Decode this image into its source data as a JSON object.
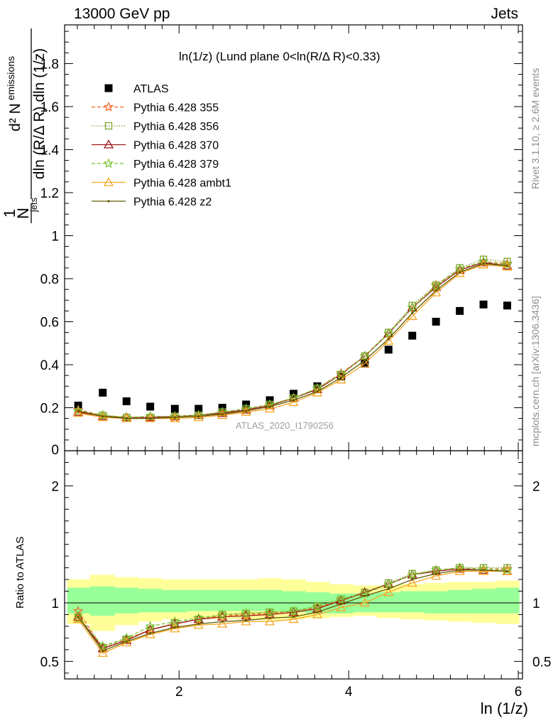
{
  "header": {
    "energy_label": "13000 GeV pp",
    "process_label": "Jets"
  },
  "side_labels": {
    "rivet": "Rivet 3.1.10, ≥ 2.6M events",
    "mcplots": "mcplots.cern.ch [arXiv:1306.3436]"
  },
  "analysis_id": "ATLAS_2020_I1790256",
  "chart_data": [
    {
      "type": "scatter",
      "title": "ln(1/z) (Lund plane 0<ln(R/Δ R)<0.33)",
      "ylabel": "1/N_jets d²N_emissions / dln(R/ΔR) dln(1/z)",
      "xlabel": "ln (1/z)",
      "xlim": [
        0.65,
        6.05
      ],
      "ylim": [
        0,
        1.98
      ],
      "y_ticks": [
        0,
        0.2,
        0.4,
        0.6,
        0.8,
        1,
        1.2,
        1.4,
        1.6,
        1.8
      ],
      "y_tick_labels": [
        "0",
        "0.2",
        "0.4",
        "0.6",
        "0.8",
        "1",
        "1.2",
        "1.4",
        "1.6",
        "1.8"
      ],
      "legend_placement": "top-left",
      "x": [
        0.81,
        1.1,
        1.38,
        1.66,
        1.95,
        2.23,
        2.51,
        2.79,
        3.07,
        3.35,
        3.63,
        3.91,
        4.19,
        4.47,
        4.75,
        5.03,
        5.31,
        5.59,
        5.87
      ],
      "series": [
        {
          "name": "ATLAS",
          "color": "#000000",
          "marker": "square",
          "line": "none",
          "values": [
            0.21,
            0.27,
            0.23,
            0.205,
            0.195,
            0.195,
            0.2,
            0.215,
            0.235,
            0.265,
            0.3,
            0.345,
            0.405,
            0.47,
            0.535,
            0.6,
            0.65,
            0.68,
            0.675
          ]
        },
        {
          "name": "Pythia 6.428 355",
          "color": "#f26522",
          "marker": "star",
          "line": "dashed",
          "values": [
            0.19,
            0.165,
            0.155,
            0.155,
            0.155,
            0.165,
            0.175,
            0.19,
            0.21,
            0.245,
            0.29,
            0.36,
            0.44,
            0.545,
            0.665,
            0.77,
            0.845,
            0.88,
            0.87
          ]
        },
        {
          "name": "Pythia 6.428 356",
          "color": "#7ba428",
          "marker": "open-square",
          "line": "dotted",
          "values": [
            0.18,
            0.165,
            0.155,
            0.155,
            0.16,
            0.165,
            0.18,
            0.195,
            0.215,
            0.245,
            0.29,
            0.355,
            0.44,
            0.55,
            0.675,
            0.77,
            0.85,
            0.89,
            0.88
          ]
        },
        {
          "name": "Pythia 6.428 370",
          "color": "#a01818",
          "marker": "open-triangle",
          "line": "solid",
          "values": [
            0.18,
            0.16,
            0.155,
            0.155,
            0.16,
            0.165,
            0.175,
            0.19,
            0.21,
            0.245,
            0.285,
            0.355,
            0.44,
            0.545,
            0.665,
            0.76,
            0.84,
            0.875,
            0.86
          ]
        },
        {
          "name": "Pythia 6.428 379",
          "color": "#7ac231",
          "marker": "star",
          "line": "dashed",
          "values": [
            0.185,
            0.165,
            0.155,
            0.16,
            0.16,
            0.165,
            0.18,
            0.195,
            0.215,
            0.245,
            0.29,
            0.355,
            0.44,
            0.545,
            0.665,
            0.765,
            0.845,
            0.88,
            0.865
          ]
        },
        {
          "name": "Pythia 6.428 ambt1",
          "color": "#f5a623",
          "marker": "open-triangle",
          "line": "solid",
          "values": [
            0.175,
            0.155,
            0.15,
            0.15,
            0.15,
            0.155,
            0.165,
            0.18,
            0.195,
            0.225,
            0.27,
            0.33,
            0.405,
            0.51,
            0.625,
            0.735,
            0.825,
            0.865,
            0.855
          ]
        },
        {
          "name": "Pythia 6.428 z2",
          "color": "#5f5a00",
          "marker": "small-dot",
          "line": "solid",
          "values": [
            0.185,
            0.16,
            0.15,
            0.15,
            0.155,
            0.16,
            0.17,
            0.185,
            0.205,
            0.235,
            0.275,
            0.34,
            0.42,
            0.52,
            0.64,
            0.745,
            0.83,
            0.87,
            0.86
          ]
        }
      ]
    },
    {
      "type": "scatter",
      "ylabel": "Ratio to ATLAS",
      "xlabel": "ln (1/z)",
      "xlim": [
        0.65,
        6.05
      ],
      "ylim": [
        0.35,
        2.3
      ],
      "y_ticks": [
        0.5,
        1,
        2
      ],
      "y_tick_labels": [
        "0.5",
        "1",
        "2"
      ],
      "x_ticks": [
        2,
        4,
        6
      ],
      "x_tick_labels": [
        "2",
        "4",
        "6"
      ],
      "reference_line": 1,
      "x": [
        0.81,
        1.1,
        1.38,
        1.66,
        1.95,
        2.23,
        2.51,
        2.79,
        3.07,
        3.35,
        3.63,
        3.91,
        4.19,
        4.47,
        4.75,
        5.03,
        5.31,
        5.59,
        5.87
      ],
      "bin_edges": [
        0.68,
        0.95,
        1.24,
        1.52,
        1.8,
        2.09,
        2.37,
        2.65,
        2.93,
        3.21,
        3.49,
        3.77,
        4.05,
        4.33,
        4.61,
        4.89,
        5.17,
        5.45,
        5.73,
        6.01
      ],
      "bands": {
        "stat_color": "#99ff99",
        "total_color": "#ffff99",
        "stat_lower": [
          0.91,
          0.89,
          0.91,
          0.92,
          0.92,
          0.93,
          0.93,
          0.93,
          0.93,
          0.92,
          0.91,
          0.91,
          0.92,
          0.92,
          0.92,
          0.91,
          0.91,
          0.91,
          0.91
        ],
        "stat_upper": [
          1.13,
          1.14,
          1.13,
          1.12,
          1.11,
          1.11,
          1.11,
          1.11,
          1.11,
          1.1,
          1.09,
          1.08,
          1.08,
          1.09,
          1.1,
          1.1,
          1.11,
          1.12,
          1.13
        ],
        "total_lower": [
          0.82,
          0.76,
          0.81,
          0.84,
          0.86,
          0.86,
          0.86,
          0.86,
          0.85,
          0.86,
          0.87,
          0.88,
          0.89,
          0.87,
          0.86,
          0.85,
          0.84,
          0.83,
          0.82
        ],
        "total_upper": [
          1.2,
          1.24,
          1.22,
          1.21,
          1.2,
          1.2,
          1.2,
          1.2,
          1.21,
          1.2,
          1.18,
          1.16,
          1.15,
          1.15,
          1.16,
          1.17,
          1.18,
          1.18,
          1.19
        ]
      },
      "series": [
        {
          "name": "Pythia 6.428 355",
          "color": "#f26522",
          "marker": "star",
          "line": "dashed",
          "values": [
            0.93,
            0.61,
            0.69,
            0.77,
            0.82,
            0.86,
            0.89,
            0.9,
            0.91,
            0.93,
            0.96,
            1.02,
            1.08,
            1.16,
            1.24,
            1.28,
            1.3,
            1.29,
            1.29
          ]
        },
        {
          "name": "Pythia 6.428 356",
          "color": "#7ba428",
          "marker": "open-square",
          "line": "dotted",
          "values": [
            0.87,
            0.62,
            0.69,
            0.77,
            0.83,
            0.86,
            0.9,
            0.91,
            0.92,
            0.93,
            0.97,
            1.03,
            1.09,
            1.17,
            1.25,
            1.28,
            1.3,
            1.3,
            1.3
          ]
        },
        {
          "name": "Pythia 6.428 370",
          "color": "#a01818",
          "marker": "open-triangle",
          "line": "solid",
          "values": [
            0.88,
            0.61,
            0.68,
            0.77,
            0.82,
            0.86,
            0.88,
            0.89,
            0.9,
            0.92,
            0.95,
            1.02,
            1.09,
            1.16,
            1.24,
            1.27,
            1.29,
            1.28,
            1.27
          ]
        },
        {
          "name": "Pythia 6.428 379",
          "color": "#7ac231",
          "marker": "star",
          "line": "dashed",
          "values": [
            0.89,
            0.63,
            0.7,
            0.8,
            0.84,
            0.87,
            0.9,
            0.91,
            0.92,
            0.93,
            0.97,
            1.03,
            1.08,
            1.16,
            1.24,
            1.28,
            1.3,
            1.29,
            1.28
          ]
        },
        {
          "name": "Pythia 6.428 ambt1",
          "color": "#f5a623",
          "marker": "open-triangle",
          "line": "solid",
          "values": [
            0.86,
            0.57,
            0.66,
            0.73,
            0.78,
            0.81,
            0.82,
            0.84,
            0.84,
            0.86,
            0.9,
            0.96,
            1.0,
            1.09,
            1.17,
            1.23,
            1.27,
            1.27,
            1.27
          ]
        },
        {
          "name": "Pythia 6.428 z2",
          "color": "#5f5a00",
          "marker": "small-dot",
          "line": "solid",
          "values": [
            0.88,
            0.59,
            0.67,
            0.74,
            0.79,
            0.82,
            0.84,
            0.85,
            0.87,
            0.88,
            0.92,
            0.99,
            1.06,
            1.12,
            1.2,
            1.25,
            1.28,
            1.28,
            1.27
          ]
        }
      ]
    }
  ]
}
